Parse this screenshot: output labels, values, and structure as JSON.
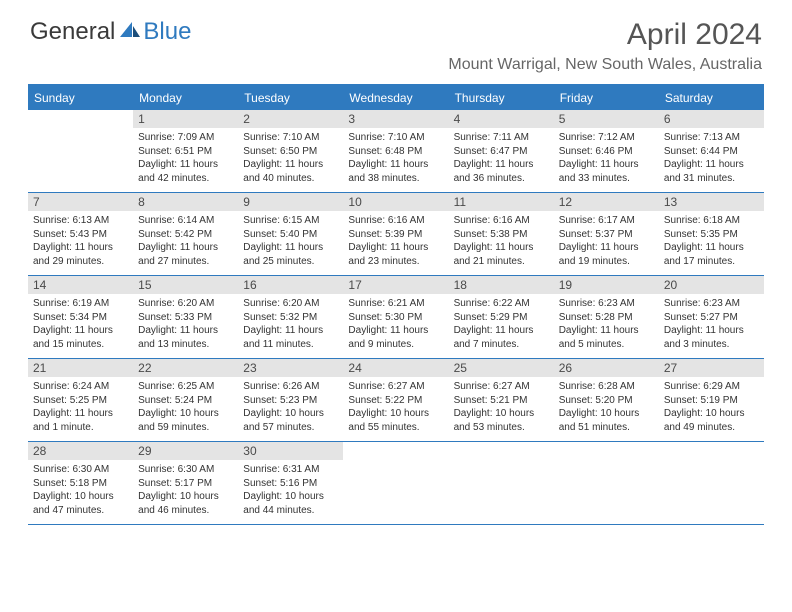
{
  "brand": {
    "name1": "General",
    "name2": "Blue"
  },
  "title": "April 2024",
  "location": "Mount Warrigal, New South Wales, Australia",
  "colors": {
    "accent": "#2f7abf",
    "dayNumBg": "#e4e4e4",
    "text": "#333333",
    "titleText": "#555555"
  },
  "daysOfWeek": [
    "Sunday",
    "Monday",
    "Tuesday",
    "Wednesday",
    "Thursday",
    "Friday",
    "Saturday"
  ],
  "weeks": [
    [
      {
        "n": "",
        "sr": "",
        "ss": "",
        "dl": ""
      },
      {
        "n": "1",
        "sr": "Sunrise: 7:09 AM",
        "ss": "Sunset: 6:51 PM",
        "dl": "Daylight: 11 hours and 42 minutes."
      },
      {
        "n": "2",
        "sr": "Sunrise: 7:10 AM",
        "ss": "Sunset: 6:50 PM",
        "dl": "Daylight: 11 hours and 40 minutes."
      },
      {
        "n": "3",
        "sr": "Sunrise: 7:10 AM",
        "ss": "Sunset: 6:48 PM",
        "dl": "Daylight: 11 hours and 38 minutes."
      },
      {
        "n": "4",
        "sr": "Sunrise: 7:11 AM",
        "ss": "Sunset: 6:47 PM",
        "dl": "Daylight: 11 hours and 36 minutes."
      },
      {
        "n": "5",
        "sr": "Sunrise: 7:12 AM",
        "ss": "Sunset: 6:46 PM",
        "dl": "Daylight: 11 hours and 33 minutes."
      },
      {
        "n": "6",
        "sr": "Sunrise: 7:13 AM",
        "ss": "Sunset: 6:44 PM",
        "dl": "Daylight: 11 hours and 31 minutes."
      }
    ],
    [
      {
        "n": "7",
        "sr": "Sunrise: 6:13 AM",
        "ss": "Sunset: 5:43 PM",
        "dl": "Daylight: 11 hours and 29 minutes."
      },
      {
        "n": "8",
        "sr": "Sunrise: 6:14 AM",
        "ss": "Sunset: 5:42 PM",
        "dl": "Daylight: 11 hours and 27 minutes."
      },
      {
        "n": "9",
        "sr": "Sunrise: 6:15 AM",
        "ss": "Sunset: 5:40 PM",
        "dl": "Daylight: 11 hours and 25 minutes."
      },
      {
        "n": "10",
        "sr": "Sunrise: 6:16 AM",
        "ss": "Sunset: 5:39 PM",
        "dl": "Daylight: 11 hours and 23 minutes."
      },
      {
        "n": "11",
        "sr": "Sunrise: 6:16 AM",
        "ss": "Sunset: 5:38 PM",
        "dl": "Daylight: 11 hours and 21 minutes."
      },
      {
        "n": "12",
        "sr": "Sunrise: 6:17 AM",
        "ss": "Sunset: 5:37 PM",
        "dl": "Daylight: 11 hours and 19 minutes."
      },
      {
        "n": "13",
        "sr": "Sunrise: 6:18 AM",
        "ss": "Sunset: 5:35 PM",
        "dl": "Daylight: 11 hours and 17 minutes."
      }
    ],
    [
      {
        "n": "14",
        "sr": "Sunrise: 6:19 AM",
        "ss": "Sunset: 5:34 PM",
        "dl": "Daylight: 11 hours and 15 minutes."
      },
      {
        "n": "15",
        "sr": "Sunrise: 6:20 AM",
        "ss": "Sunset: 5:33 PM",
        "dl": "Daylight: 11 hours and 13 minutes."
      },
      {
        "n": "16",
        "sr": "Sunrise: 6:20 AM",
        "ss": "Sunset: 5:32 PM",
        "dl": "Daylight: 11 hours and 11 minutes."
      },
      {
        "n": "17",
        "sr": "Sunrise: 6:21 AM",
        "ss": "Sunset: 5:30 PM",
        "dl": "Daylight: 11 hours and 9 minutes."
      },
      {
        "n": "18",
        "sr": "Sunrise: 6:22 AM",
        "ss": "Sunset: 5:29 PM",
        "dl": "Daylight: 11 hours and 7 minutes."
      },
      {
        "n": "19",
        "sr": "Sunrise: 6:23 AM",
        "ss": "Sunset: 5:28 PM",
        "dl": "Daylight: 11 hours and 5 minutes."
      },
      {
        "n": "20",
        "sr": "Sunrise: 6:23 AM",
        "ss": "Sunset: 5:27 PM",
        "dl": "Daylight: 11 hours and 3 minutes."
      }
    ],
    [
      {
        "n": "21",
        "sr": "Sunrise: 6:24 AM",
        "ss": "Sunset: 5:25 PM",
        "dl": "Daylight: 11 hours and 1 minute."
      },
      {
        "n": "22",
        "sr": "Sunrise: 6:25 AM",
        "ss": "Sunset: 5:24 PM",
        "dl": "Daylight: 10 hours and 59 minutes."
      },
      {
        "n": "23",
        "sr": "Sunrise: 6:26 AM",
        "ss": "Sunset: 5:23 PM",
        "dl": "Daylight: 10 hours and 57 minutes."
      },
      {
        "n": "24",
        "sr": "Sunrise: 6:27 AM",
        "ss": "Sunset: 5:22 PM",
        "dl": "Daylight: 10 hours and 55 minutes."
      },
      {
        "n": "25",
        "sr": "Sunrise: 6:27 AM",
        "ss": "Sunset: 5:21 PM",
        "dl": "Daylight: 10 hours and 53 minutes."
      },
      {
        "n": "26",
        "sr": "Sunrise: 6:28 AM",
        "ss": "Sunset: 5:20 PM",
        "dl": "Daylight: 10 hours and 51 minutes."
      },
      {
        "n": "27",
        "sr": "Sunrise: 6:29 AM",
        "ss": "Sunset: 5:19 PM",
        "dl": "Daylight: 10 hours and 49 minutes."
      }
    ],
    [
      {
        "n": "28",
        "sr": "Sunrise: 6:30 AM",
        "ss": "Sunset: 5:18 PM",
        "dl": "Daylight: 10 hours and 47 minutes."
      },
      {
        "n": "29",
        "sr": "Sunrise: 6:30 AM",
        "ss": "Sunset: 5:17 PM",
        "dl": "Daylight: 10 hours and 46 minutes."
      },
      {
        "n": "30",
        "sr": "Sunrise: 6:31 AM",
        "ss": "Sunset: 5:16 PM",
        "dl": "Daylight: 10 hours and 44 minutes."
      },
      {
        "n": "",
        "sr": "",
        "ss": "",
        "dl": ""
      },
      {
        "n": "",
        "sr": "",
        "ss": "",
        "dl": ""
      },
      {
        "n": "",
        "sr": "",
        "ss": "",
        "dl": ""
      },
      {
        "n": "",
        "sr": "",
        "ss": "",
        "dl": ""
      }
    ]
  ]
}
